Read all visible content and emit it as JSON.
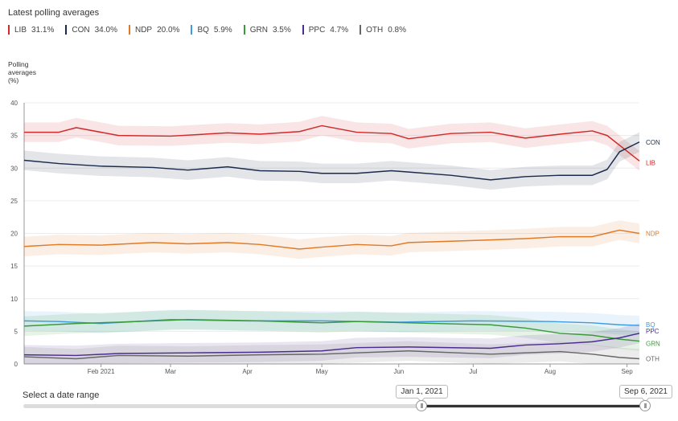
{
  "header": {
    "title": "Latest polling averages"
  },
  "legend": [
    {
      "party": "LIB",
      "value": "31.1%",
      "color": "#d02a2a"
    },
    {
      "party": "CON",
      "value": "34.0%",
      "color": "#1a2b4c"
    },
    {
      "party": "NDP",
      "value": "20.0%",
      "color": "#e07a26"
    },
    {
      "party": "BQ",
      "value": "5.9%",
      "color": "#3f9ae0"
    },
    {
      "party": "GRN",
      "value": "3.5%",
      "color": "#3a9a3a"
    },
    {
      "party": "PPC",
      "value": "4.7%",
      "color": "#4b2c8f"
    },
    {
      "party": "OTH",
      "value": "0.8%",
      "color": "#666666"
    }
  ],
  "chart_data": {
    "type": "line",
    "ylabel": "Polling averages (%)",
    "ylim": [
      0,
      40
    ],
    "yticks": [
      0,
      5,
      10,
      15,
      20,
      25,
      30,
      35,
      40
    ],
    "xlim": [
      "2021-01-01",
      "2021-09-06"
    ],
    "xticks": [
      {
        "label": "Feb 2021",
        "date": "2021-02-01"
      },
      {
        "label": "Mar",
        "date": "2021-03-01"
      },
      {
        "label": "Apr",
        "date": "2021-04-01"
      },
      {
        "label": "May",
        "date": "2021-05-01"
      },
      {
        "label": "Jun",
        "date": "2021-06-01"
      },
      {
        "label": "Jul",
        "date": "2021-07-01"
      },
      {
        "label": "Aug",
        "date": "2021-08-01"
      },
      {
        "label": "Sep",
        "date": "2021-09-01"
      }
    ],
    "grid": "horizontal",
    "band_width": 1.5,
    "series": [
      {
        "name": "LIB",
        "color": "#d02a2a",
        "x": [
          "2021-01-01",
          "2021-01-15",
          "2021-01-22",
          "2021-02-08",
          "2021-03-01",
          "2021-03-24",
          "2021-04-06",
          "2021-04-22",
          "2021-05-01",
          "2021-05-15",
          "2021-05-29",
          "2021-06-05",
          "2021-06-22",
          "2021-07-08",
          "2021-07-22",
          "2021-08-05",
          "2021-08-18",
          "2021-08-24",
          "2021-08-29",
          "2021-09-06"
        ],
        "y": [
          35.5,
          35.5,
          36.2,
          35.0,
          34.9,
          35.4,
          35.2,
          35.6,
          36.5,
          35.5,
          35.3,
          34.5,
          35.3,
          35.5,
          34.6,
          35.2,
          35.7,
          35.0,
          33.5,
          31.1
        ]
      },
      {
        "name": "CON",
        "color": "#1a2b4c",
        "x": [
          "2021-01-01",
          "2021-01-15",
          "2021-02-01",
          "2021-02-22",
          "2021-03-08",
          "2021-03-24",
          "2021-04-06",
          "2021-04-22",
          "2021-05-01",
          "2021-05-15",
          "2021-05-29",
          "2021-06-05",
          "2021-06-22",
          "2021-07-08",
          "2021-07-22",
          "2021-08-05",
          "2021-08-18",
          "2021-08-24",
          "2021-08-29",
          "2021-09-06"
        ],
        "y": [
          31.2,
          30.7,
          30.3,
          30.1,
          29.7,
          30.2,
          29.6,
          29.5,
          29.2,
          29.2,
          29.6,
          29.4,
          28.9,
          28.2,
          28.7,
          28.9,
          28.9,
          29.8,
          32.5,
          34.0
        ]
      },
      {
        "name": "NDP",
        "color": "#e07a26",
        "x": [
          "2021-01-01",
          "2021-01-15",
          "2021-02-01",
          "2021-02-22",
          "2021-03-08",
          "2021-03-24",
          "2021-04-06",
          "2021-04-22",
          "2021-05-01",
          "2021-05-15",
          "2021-05-29",
          "2021-06-05",
          "2021-06-22",
          "2021-07-08",
          "2021-07-22",
          "2021-08-05",
          "2021-08-18",
          "2021-08-29",
          "2021-09-06"
        ],
        "y": [
          18.0,
          18.3,
          18.2,
          18.6,
          18.4,
          18.6,
          18.3,
          17.6,
          17.9,
          18.3,
          18.1,
          18.6,
          18.8,
          19.0,
          19.2,
          19.5,
          19.5,
          20.5,
          20.0
        ]
      },
      {
        "name": "BQ",
        "color": "#3f9ae0",
        "x": [
          "2021-01-01",
          "2021-01-15",
          "2021-02-01",
          "2021-03-01",
          "2021-04-01",
          "2021-05-01",
          "2021-06-01",
          "2021-07-01",
          "2021-08-01",
          "2021-08-18",
          "2021-08-29",
          "2021-09-06"
        ],
        "y": [
          6.6,
          6.5,
          6.2,
          6.8,
          6.6,
          6.6,
          6.4,
          6.6,
          6.5,
          6.3,
          6.0,
          5.9
        ]
      },
      {
        "name": "GRN",
        "color": "#3a9a3a",
        "x": [
          "2021-01-01",
          "2021-01-22",
          "2021-02-08",
          "2021-03-08",
          "2021-04-06",
          "2021-05-01",
          "2021-05-15",
          "2021-06-05",
          "2021-07-08",
          "2021-07-22",
          "2021-08-05",
          "2021-08-18",
          "2021-08-29",
          "2021-09-06"
        ],
        "y": [
          5.8,
          6.2,
          6.4,
          6.8,
          6.6,
          6.3,
          6.5,
          6.3,
          6.0,
          5.5,
          4.7,
          4.4,
          3.8,
          3.5
        ]
      },
      {
        "name": "PPC",
        "color": "#4b2c8f",
        "x": [
          "2021-01-01",
          "2021-01-22",
          "2021-02-08",
          "2021-03-08",
          "2021-04-06",
          "2021-05-01",
          "2021-05-15",
          "2021-06-05",
          "2021-07-08",
          "2021-07-22",
          "2021-08-05",
          "2021-08-18",
          "2021-08-29",
          "2021-09-06"
        ],
        "y": [
          1.4,
          1.3,
          1.6,
          1.7,
          1.8,
          2.0,
          2.5,
          2.6,
          2.4,
          2.9,
          3.1,
          3.4,
          4.0,
          4.7
        ]
      },
      {
        "name": "OTH",
        "color": "#666666",
        "x": [
          "2021-01-01",
          "2021-01-22",
          "2021-02-08",
          "2021-03-08",
          "2021-04-06",
          "2021-05-01",
          "2021-06-05",
          "2021-07-08",
          "2021-08-05",
          "2021-08-18",
          "2021-08-29",
          "2021-09-06"
        ],
        "y": [
          1.1,
          0.8,
          1.3,
          1.2,
          1.4,
          1.5,
          2.0,
          1.5,
          1.9,
          1.5,
          1.0,
          0.8
        ]
      }
    ]
  },
  "date_range": {
    "title": "Select a date range",
    "start_label": "Jan 1, 2021",
    "end_label": "Sep 6, 2021",
    "start_fraction": 0.64,
    "end_fraction": 1.0
  }
}
